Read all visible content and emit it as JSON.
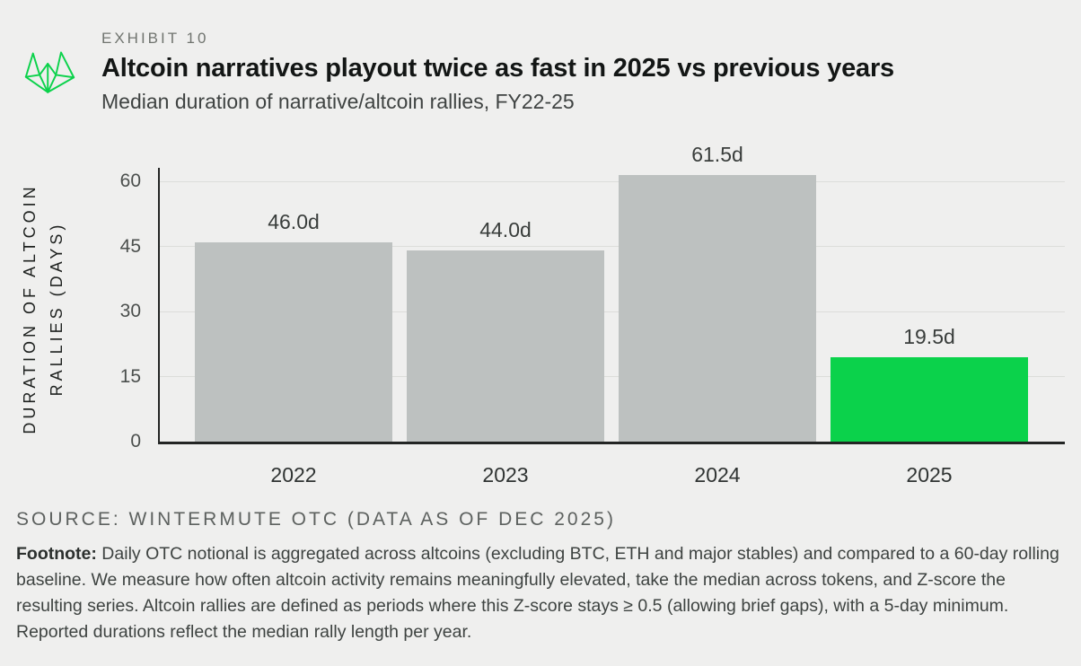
{
  "header": {
    "exhibit_label": "EXHIBIT 10",
    "title": "Altcoin narratives playout twice as fast in 2025 vs previous years",
    "subtitle": "Median duration of narrative/altcoin rallies, FY22-25",
    "logo_icon": "wintermute-logo"
  },
  "chart_data": {
    "type": "bar",
    "title": "Altcoin narratives playout twice as fast in 2025 vs previous years",
    "subtitle": "Median duration of narrative/altcoin rallies, FY22-25",
    "categories": [
      "2022",
      "2023",
      "2024",
      "2025"
    ],
    "values": [
      46.0,
      44.0,
      61.5,
      19.5
    ],
    "bar_labels": [
      "46.0d",
      "44.0d",
      "61.5d",
      "19.5d"
    ],
    "bar_colors": [
      "#bdc1c0",
      "#bdc1c0",
      "#bdc1c0",
      "#0bd24b"
    ],
    "highlighted_category": "2025",
    "xlabel": "",
    "ylabel": "DURATION OF ALTCOIN RALLIES (DAYS)",
    "ylabel_line1": "DURATION OF ALTCOIN",
    "ylabel_line2": "RALLIES (DAYS)",
    "yticks": [
      0,
      15,
      30,
      45,
      60
    ],
    "ylim": [
      0,
      63
    ],
    "grid": "horizontal",
    "legend": "none"
  },
  "footer": {
    "source": "SOURCE: WINTERMUTE OTC (DATA AS OF DEC 2025)",
    "footnote_label": "Footnote:",
    "footnote_text": " Daily OTC notional is aggregated across altcoins (excluding BTC, ETH and major stables) and compared to a 60-day rolling baseline. We measure how often altcoin activity remains meaningfully elevated, take the median across tokens, and Z-score the resulting series. Altcoin rallies are defined as periods where this Z-score stays ≥ 0.5 (allowing brief gaps), with a 5-day minimum. Reported durations reflect the median rally length per year."
  },
  "colors": {
    "background": "#efefee",
    "bar_gray": "#bdc1c0",
    "brand_green": "#0bd24b",
    "axis": "#232524",
    "gridline": "#dcddda"
  }
}
